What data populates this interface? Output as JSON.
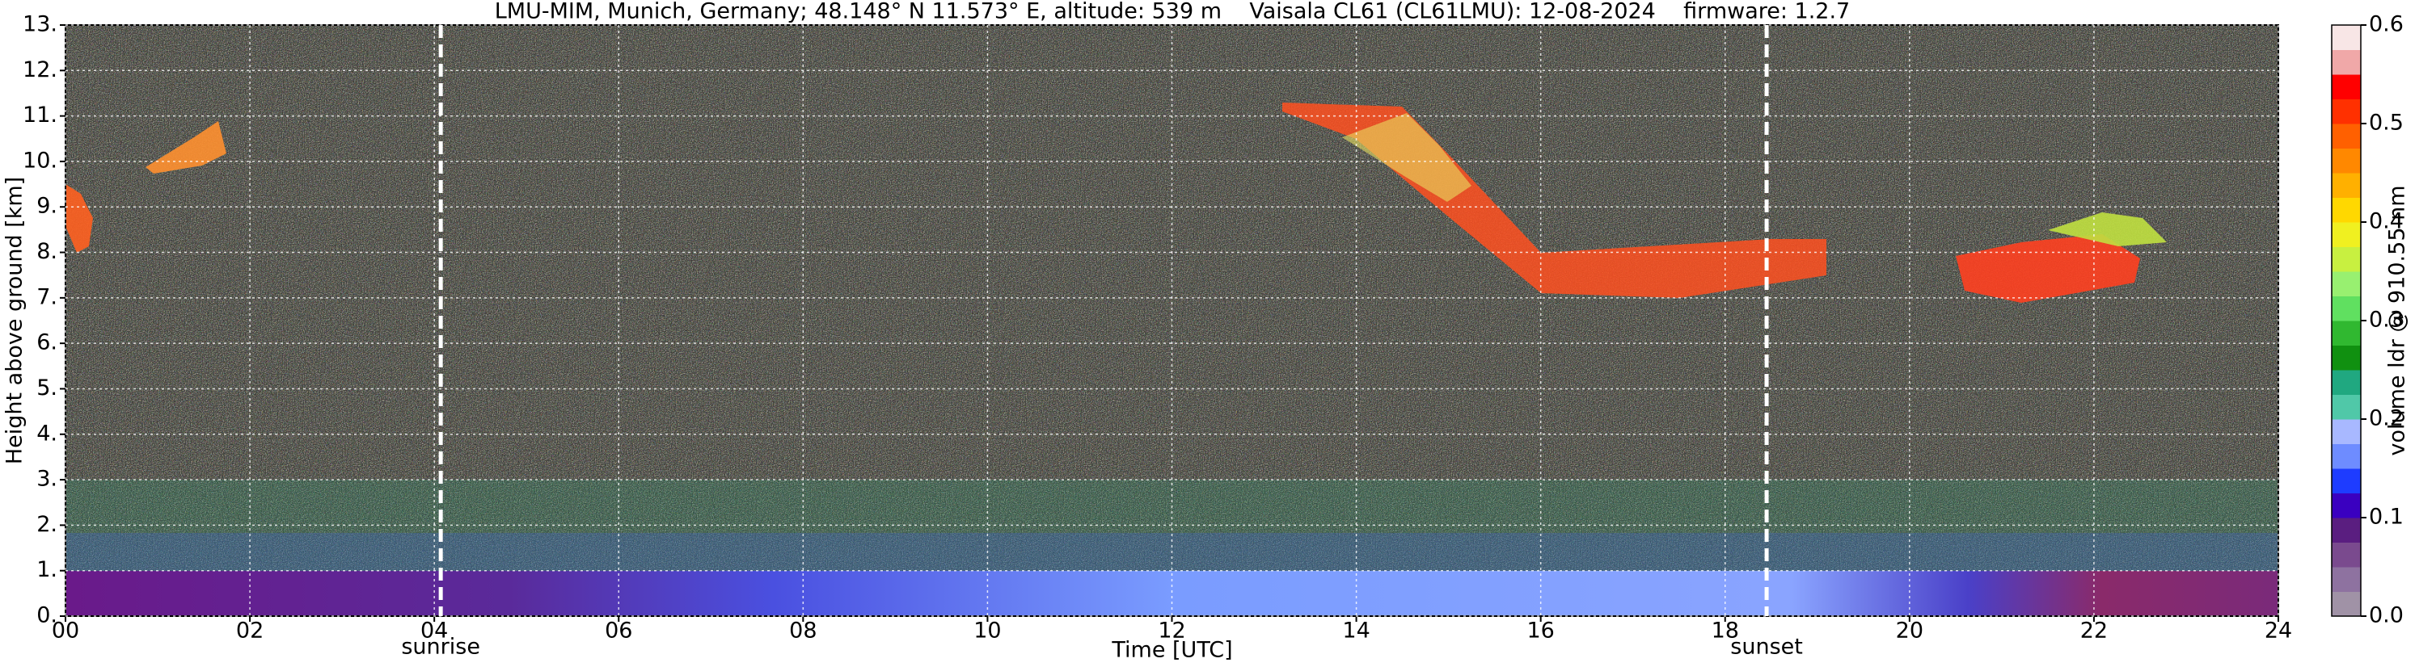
{
  "chart_data": {
    "type": "heatmap",
    "title": "LMU-MIM, Munich, Germany; 48.148° N 11.573° E, altitude: 539 m    Vaisala CL61 (CL61LMU): 12-08-2024    firmware: 1.2.7",
    "x_label": "Time [UTC]",
    "y_label": "Height above ground [km]",
    "colorbar_label": "volume ldr @ 910.55 nm",
    "xlim": [
      0,
      24
    ],
    "xticks": [
      {
        "value": 0,
        "label": "00"
      },
      {
        "value": 2,
        "label": "02"
      },
      {
        "value": 4,
        "label": "04"
      },
      {
        "value": 6,
        "label": "06"
      },
      {
        "value": 8,
        "label": "08"
      },
      10,
      12,
      14,
      16,
      18,
      20,
      22,
      24
    ],
    "ylim": [
      0,
      13
    ],
    "yticks": [
      {
        "value": 0,
        "label": "0."
      },
      {
        "value": 1,
        "label": "1."
      },
      {
        "value": 2,
        "label": "2."
      },
      {
        "value": 3,
        "label": "3."
      },
      {
        "value": 4,
        "label": "4."
      },
      {
        "value": 5,
        "label": "5."
      },
      {
        "value": 6,
        "label": "6."
      },
      {
        "value": 7,
        "label": "7."
      },
      {
        "value": 8,
        "label": "8."
      },
      {
        "value": 9,
        "label": "9."
      },
      {
        "value": 10,
        "label": "10."
      },
      {
        "value": 11,
        "label": "11."
      },
      {
        "value": 12,
        "label": "12."
      },
      {
        "value": 13,
        "label": "13."
      }
    ],
    "clim": [
      0,
      0.6
    ],
    "cticks": [
      {
        "value": 0,
        "label": "0.0"
      },
      0.1,
      0.2,
      0.3,
      0.4,
      0.5,
      0.6
    ],
    "colormap": [
      "#a092a6",
      "#8e72a0",
      "#7a4a8e",
      "#5a1e80",
      "#3a00c0",
      "#1e3cff",
      "#6e8cff",
      "#a8b8ff",
      "#50c8a8",
      "#20a880",
      "#109010",
      "#30b830",
      "#60e060",
      "#98f070",
      "#c8f040",
      "#f0f020",
      "#ffd800",
      "#ffb000",
      "#ff8800",
      "#ff6000",
      "#ff3000",
      "#ff0000",
      "#f0a8a8",
      "#f8e6e6"
    ],
    "grid": true,
    "annotations": [
      {
        "label": "sunrise",
        "x": 4.07
      },
      {
        "label": "sunset",
        "x": 18.45
      }
    ]
  }
}
